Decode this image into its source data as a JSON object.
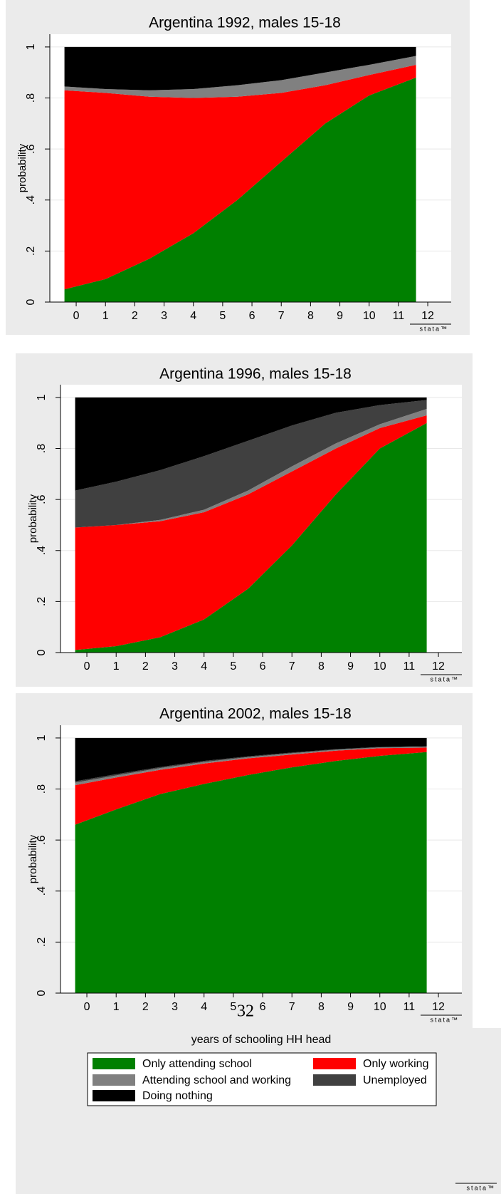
{
  "page_number": "32",
  "footer_logo": "stata™",
  "chart_data": [
    {
      "type": "area",
      "stacked": true,
      "title": "Argentina 1992, males 15-18",
      "ylabel": "probability",
      "logo": "stata™",
      "x": [
        -0.4,
        1,
        2.5,
        4,
        5.5,
        7,
        8.5,
        10,
        11.6
      ],
      "xlim": [
        -0.9,
        12.8
      ],
      "ylim": [
        0,
        1.05
      ],
      "xticks": [
        0,
        1,
        2,
        3,
        4,
        5,
        6,
        7,
        8,
        9,
        10,
        11,
        12
      ],
      "yticks": [
        0,
        {
          "value": 0.2,
          "label": ".2"
        },
        {
          "value": 0.4,
          "label": ".4"
        },
        {
          "value": 0.6,
          "label": ".6"
        },
        {
          "value": 0.8,
          "label": ".8"
        },
        1
      ],
      "grid": true,
      "series": [
        {
          "name": "Only attending school",
          "color": "#008000",
          "values": [
            0.05,
            0.09,
            0.17,
            0.27,
            0.4,
            0.55,
            0.7,
            0.81,
            0.88
          ]
        },
        {
          "name": "Only working",
          "color": "#ff0000",
          "values": [
            0.78,
            0.73,
            0.635,
            0.53,
            0.405,
            0.27,
            0.15,
            0.08,
            0.05
          ]
        },
        {
          "name": "Attending school and working",
          "color": "#808080",
          "values": [
            0.015,
            0.015,
            0.025,
            0.035,
            0.045,
            0.05,
            0.05,
            0.04,
            0.035
          ]
        },
        {
          "name": "Unemployed",
          "color": "#404040",
          "values": [
            0,
            0,
            0,
            0,
            0,
            0,
            0,
            0,
            0
          ]
        },
        {
          "name": "Doing nothing",
          "color": "#000000",
          "values": [
            0.155,
            0.165,
            0.17,
            0.165,
            0.15,
            0.13,
            0.1,
            0.07,
            0.035
          ]
        }
      ]
    },
    {
      "type": "area",
      "stacked": true,
      "title": "Argentina 1996, males 15-18",
      "ylabel": "probability",
      "logo": "stata™",
      "x": [
        -0.4,
        1,
        2.5,
        4,
        5.5,
        7,
        8.5,
        10,
        11.6
      ],
      "xlim": [
        -0.9,
        12.8
      ],
      "ylim": [
        0,
        1.05
      ],
      "xticks": [
        0,
        1,
        2,
        3,
        4,
        5,
        6,
        7,
        8,
        9,
        10,
        11,
        12
      ],
      "yticks": [
        0,
        {
          "value": 0.2,
          "label": ".2"
        },
        {
          "value": 0.4,
          "label": ".4"
        },
        {
          "value": 0.6,
          "label": ".6"
        },
        {
          "value": 0.8,
          "label": ".8"
        },
        1
      ],
      "grid": true,
      "series": [
        {
          "name": "Only attending school",
          "color": "#008000",
          "values": [
            0.01,
            0.025,
            0.06,
            0.13,
            0.25,
            0.42,
            0.62,
            0.8,
            0.9
          ]
        },
        {
          "name": "Only working",
          "color": "#ff0000",
          "values": [
            0.48,
            0.475,
            0.455,
            0.42,
            0.37,
            0.29,
            0.18,
            0.08,
            0.03
          ]
        },
        {
          "name": "Attending school and working",
          "color": "#808080",
          "values": [
            0,
            0,
            0.005,
            0.01,
            0.015,
            0.02,
            0.02,
            0.015,
            0.025
          ]
        },
        {
          "name": "Unemployed",
          "color": "#404040",
          "values": [
            0.145,
            0.17,
            0.195,
            0.21,
            0.195,
            0.16,
            0.12,
            0.075,
            0.035
          ]
        },
        {
          "name": "Doing nothing",
          "color": "#000000",
          "values": [
            0.365,
            0.33,
            0.285,
            0.23,
            0.17,
            0.11,
            0.06,
            0.03,
            0.01
          ]
        }
      ]
    },
    {
      "type": "area",
      "stacked": true,
      "title": "Argentina 2002, males 15-18",
      "ylabel": "probability",
      "xlabel": "years of schooling HH head",
      "logo": "stata™",
      "x": [
        -0.4,
        1,
        2.5,
        4,
        5.5,
        7,
        8.5,
        10,
        11.6
      ],
      "xlim": [
        -0.9,
        12.8
      ],
      "ylim": [
        0,
        1.05
      ],
      "xticks": [
        0,
        1,
        2,
        3,
        4,
        5,
        6,
        7,
        8,
        9,
        10,
        11,
        12
      ],
      "yticks": [
        0,
        {
          "value": 0.2,
          "label": ".2"
        },
        {
          "value": 0.4,
          "label": ".4"
        },
        {
          "value": 0.6,
          "label": ".6"
        },
        {
          "value": 0.8,
          "label": ".8"
        },
        1
      ],
      "grid": true,
      "legend": "bottom",
      "series": [
        {
          "name": "Only attending school",
          "color": "#008000",
          "values": [
            0.66,
            0.72,
            0.78,
            0.82,
            0.855,
            0.885,
            0.91,
            0.93,
            0.945
          ]
        },
        {
          "name": "Only working",
          "color": "#ff0000",
          "values": [
            0.155,
            0.125,
            0.095,
            0.08,
            0.065,
            0.05,
            0.04,
            0.03,
            0.017
          ]
        },
        {
          "name": "Attending school and working",
          "color": "#808080",
          "values": [
            0.01,
            0.008,
            0.007,
            0.006,
            0.005,
            0.005,
            0.004,
            0.003,
            0.003
          ]
        },
        {
          "name": "Unemployed",
          "color": "#404040",
          "values": [
            0.005,
            0.005,
            0.004,
            0.004,
            0.003,
            0.003,
            0.002,
            0.002,
            0.003
          ]
        },
        {
          "name": "Doing nothing",
          "color": "#000000",
          "values": [
            0.17,
            0.142,
            0.114,
            0.09,
            0.072,
            0.057,
            0.044,
            0.035,
            0.032
          ]
        }
      ]
    }
  ]
}
